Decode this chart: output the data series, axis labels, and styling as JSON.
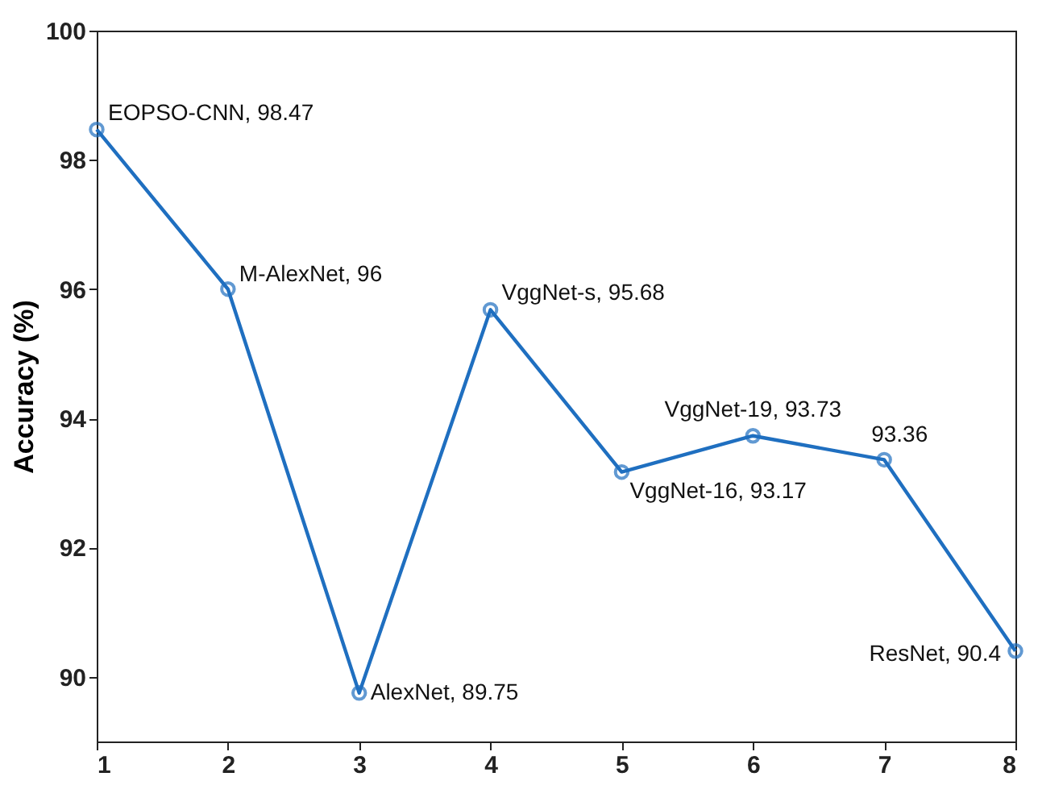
{
  "chart_data": {
    "type": "line",
    "ylabel": "Accuracy (%)",
    "x": [
      1,
      2,
      3,
      4,
      5,
      6,
      7,
      8
    ],
    "series": [
      {
        "color": "#1f6fc0",
        "values": [
          98.47,
          96,
          89.75,
          95.68,
          93.17,
          93.73,
          93.36,
          90.4
        ]
      }
    ],
    "xlim": [
      1,
      8
    ],
    "xticks": [
      1,
      2,
      3,
      4,
      5,
      6,
      7,
      8
    ],
    "ylim": [
      89,
      100
    ],
    "yticks": [
      90,
      92,
      94,
      96,
      98,
      100
    ],
    "grid": false,
    "marker": "circle",
    "line_style": "solid",
    "annotations": [
      {
        "text": "EOPSO-CNN, 98.47",
        "x": 1,
        "y": 98.47
      },
      {
        "text": "M-AlexNet, 96",
        "x": 2,
        "y": 96
      },
      {
        "text": "AlexNet, 89.75",
        "x": 3,
        "y": 89.75
      },
      {
        "text": "VggNet-s, 95.68",
        "x": 4,
        "y": 95.68
      },
      {
        "text": "VggNet-16, 93.17",
        "x": 5,
        "y": 93.17
      },
      {
        "text": "VggNet-19, 93.73",
        "x": 6,
        "y": 93.73
      },
      {
        "text": "93.36",
        "x": 7,
        "y": 93.36
      },
      {
        "text": "ResNet, 90.4",
        "x": 8,
        "y": 90.4
      }
    ]
  }
}
